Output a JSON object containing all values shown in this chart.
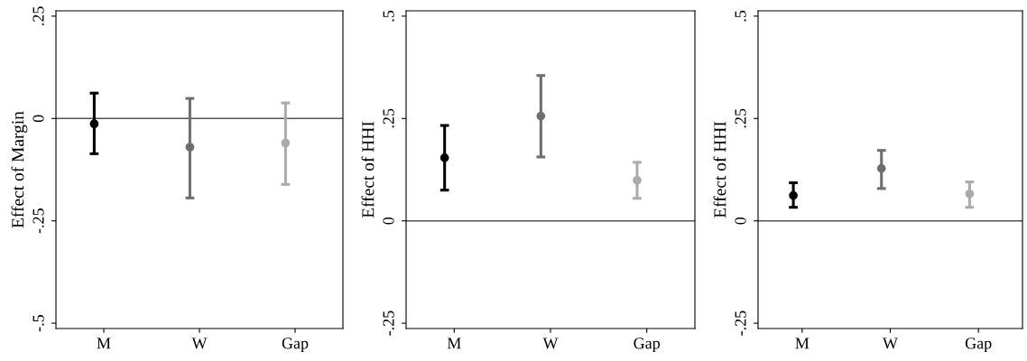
{
  "chart_data": [
    {
      "type": "scatter",
      "ylabel": "Effect of Margin",
      "categories": [
        "M",
        "W",
        "Gap"
      ],
      "values": [
        -0.013,
        -0.07,
        -0.06
      ],
      "errors": [
        [
          -0.086,
          0.062
        ],
        [
          -0.194,
          0.049
        ],
        [
          -0.161,
          0.038
        ]
      ],
      "colors": [
        "#000000",
        "#6e6e6e",
        "#ababab"
      ],
      "marker": "circle",
      "ylim": [
        -0.513,
        0.263
      ],
      "yticks": [
        {
          "value": -0.5,
          "label": "-.5"
        },
        {
          "value": -0.25,
          "label": "-.25"
        },
        0,
        {
          "value": 0.25,
          "label": ".25"
        }
      ],
      "ref_lines": [
        {
          "axis": "y",
          "value": 0,
          "color": "#555555"
        }
      ],
      "grid": false
    },
    {
      "type": "scatter",
      "ylabel": "Effect of HHI",
      "categories": [
        "M",
        "W",
        "Gap"
      ],
      "values": [
        0.154,
        0.256,
        0.099
      ],
      "errors": [
        [
          0.075,
          0.233
        ],
        [
          0.156,
          0.355
        ],
        [
          0.055,
          0.143
        ]
      ],
      "colors": [
        "#000000",
        "#6e6e6e",
        "#ababab"
      ],
      "marker": "circle",
      "ylim": [
        -0.263,
        0.513
      ],
      "yticks": [
        {
          "value": -0.25,
          "label": "-.25"
        },
        0,
        {
          "value": 0.25,
          "label": ".25"
        },
        {
          "value": 0.5,
          "label": ".5"
        }
      ],
      "ref_lines": [
        {
          "axis": "y",
          "value": 0,
          "color": "#555555"
        }
      ],
      "grid": false
    },
    {
      "type": "scatter",
      "ylabel": "Effect of HHI",
      "categories": [
        "M",
        "W",
        "Gap"
      ],
      "values": [
        0.062,
        0.128,
        0.066
      ],
      "errors": [
        [
          0.033,
          0.093
        ],
        [
          0.079,
          0.172
        ],
        [
          0.033,
          0.095
        ]
      ],
      "colors": [
        "#000000",
        "#6e6e6e",
        "#ababab"
      ],
      "marker": "circle",
      "ylim": [
        -0.263,
        0.513
      ],
      "yticks": [
        {
          "value": -0.25,
          "label": "-.25"
        },
        0,
        {
          "value": 0.25,
          "label": ".25"
        },
        {
          "value": 0.5,
          "label": ".5"
        }
      ],
      "ref_lines": [
        {
          "axis": "y",
          "value": 0,
          "color": "#555555"
        }
      ],
      "grid": false
    }
  ]
}
